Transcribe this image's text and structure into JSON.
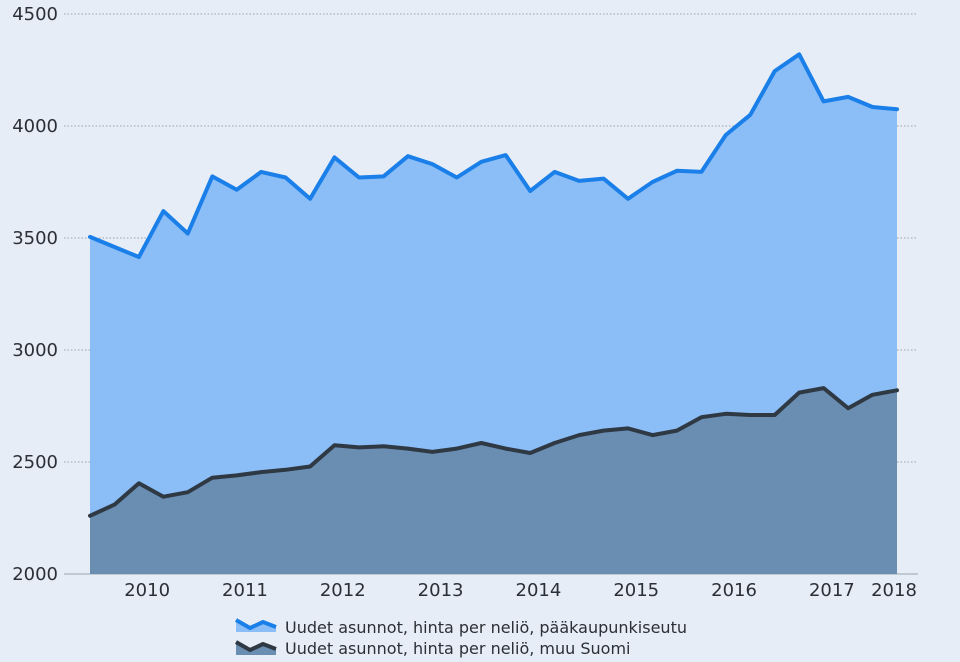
{
  "chart_data": {
    "type": "area",
    "title": "",
    "xlabel": "",
    "ylabel": "",
    "ylim": [
      2000,
      4500
    ],
    "yticks": [
      "2000",
      "2500",
      "3000",
      "3500",
      "4000",
      "4500"
    ],
    "xticks": [
      "2010",
      "2011",
      "2012",
      "2013",
      "2014",
      "2015",
      "2016",
      "2017",
      "2018"
    ],
    "grid": "horizontal dotted",
    "legend_position": "bottom",
    "x_quarters": [
      "2009Q4",
      "2010Q1",
      "2010Q2",
      "2010Q3",
      "2010Q4",
      "2011Q1",
      "2011Q2",
      "2011Q3",
      "2011Q4",
      "2012Q1",
      "2012Q2",
      "2012Q3",
      "2012Q4",
      "2013Q1",
      "2013Q2",
      "2013Q3",
      "2013Q4",
      "2014Q1",
      "2014Q2",
      "2014Q3",
      "2014Q4",
      "2015Q1",
      "2015Q2",
      "2015Q3",
      "2015Q4",
      "2016Q1",
      "2016Q2",
      "2016Q3",
      "2016Q4",
      "2017Q1",
      "2017Q2",
      "2017Q3",
      "2017Q4",
      "2018Q1"
    ],
    "series": [
      {
        "name": "Uudet asunnot, hinta per neliö, pääkaupunkiseutu",
        "line_color": "#1a7fe8",
        "fill_color": "#8bbdf7",
        "values": [
          3505,
          3460,
          3415,
          3620,
          3520,
          3775,
          3715,
          3795,
          3770,
          3675,
          3860,
          3770,
          3775,
          3865,
          3830,
          3770,
          3840,
          3870,
          3710,
          3795,
          3755,
          3765,
          3675,
          3750,
          3800,
          3795,
          3960,
          4050,
          4245,
          4320,
          4110,
          4130,
          4085,
          4075
        ]
      },
      {
        "name": "Uudet asunnot, hinta per neliö, muu Suomi",
        "line_color": "#2f3944",
        "fill_color": "#6a8db2",
        "values": [
          2260,
          2310,
          2405,
          2345,
          2365,
          2430,
          2440,
          2455,
          2465,
          2480,
          2575,
          2565,
          2570,
          2560,
          2545,
          2560,
          2585,
          2560,
          2540,
          2585,
          2620,
          2640,
          2650,
          2620,
          2640,
          2700,
          2715,
          2710,
          2710,
          2810,
          2830,
          2740,
          2800,
          2820
        ]
      }
    ]
  }
}
